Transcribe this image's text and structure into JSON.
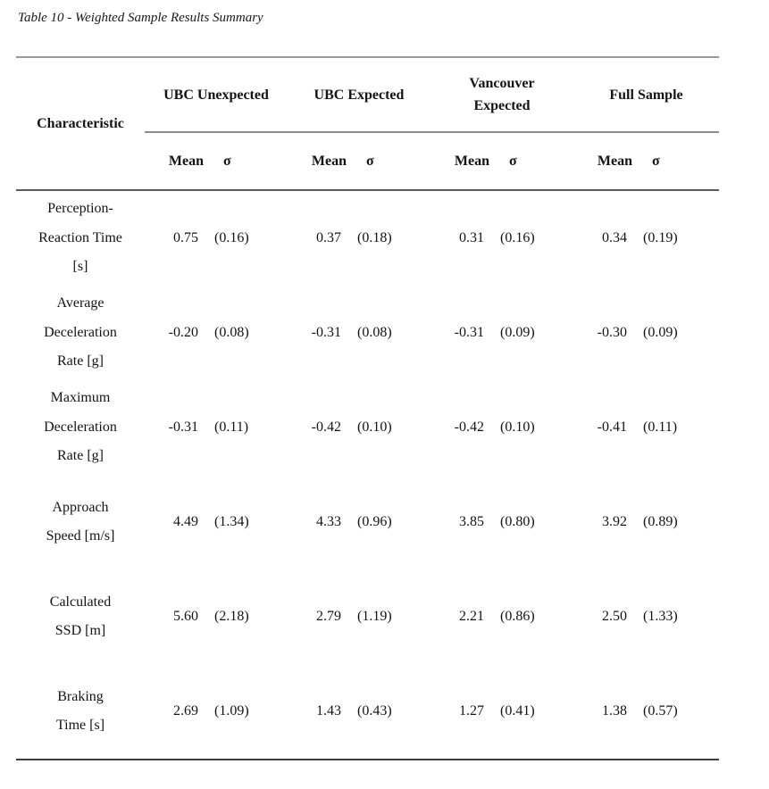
{
  "colors": {
    "background": "#ffffff",
    "text": "#141414",
    "rule_light": "#979797",
    "rule_dark": "#3d3d3d"
  },
  "title": "Table 10 - Weighted Sample Results Summary",
  "table": {
    "characteristic_header": "Characteristic",
    "sub_headers": {
      "mean": "Mean",
      "sigma": "σ"
    },
    "groups": [
      "UBC Unexpected",
      "UBC Expected",
      "Vancouver Expected",
      "Full Sample"
    ],
    "rows": [
      {
        "lines": [
          "Perception-",
          "Reaction Time",
          "[s]"
        ],
        "values": [
          [
            "0.75",
            "(0.16)"
          ],
          [
            "0.37",
            "(0.18)"
          ],
          [
            "0.31",
            "(0.16)"
          ],
          [
            "0.34",
            "(0.19)"
          ]
        ]
      },
      {
        "lines": [
          "Average",
          "Deceleration",
          "Rate [g]"
        ],
        "values": [
          [
            "-0.20",
            "(0.08)"
          ],
          [
            "-0.31",
            "(0.08)"
          ],
          [
            "-0.31",
            "(0.09)"
          ],
          [
            "-0.30",
            "(0.09)"
          ]
        ]
      },
      {
        "lines": [
          "Maximum",
          "Deceleration",
          "Rate [g]"
        ],
        "values": [
          [
            "-0.31",
            "(0.11)"
          ],
          [
            "-0.42",
            "(0.10)"
          ],
          [
            "-0.42",
            "(0.10)"
          ],
          [
            "-0.41",
            "(0.11)"
          ]
        ]
      },
      {
        "lines": [
          "Approach",
          "Speed [m/s]"
        ],
        "values": [
          [
            "4.49",
            "(1.34)"
          ],
          [
            "4.33",
            "(0.96)"
          ],
          [
            "3.85",
            "(0.80)"
          ],
          [
            "3.92",
            "(0.89)"
          ]
        ]
      },
      {
        "lines": [
          "Calculated",
          "SSD [m]"
        ],
        "values": [
          [
            "5.60",
            "(2.18)"
          ],
          [
            "2.79",
            "(1.19)"
          ],
          [
            "2.21",
            "(0.86)"
          ],
          [
            "2.50",
            "(1.33)"
          ]
        ]
      },
      {
        "lines": [
          "Braking",
          "Time [s]"
        ],
        "values": [
          [
            "2.69",
            "(1.09)"
          ],
          [
            "1.43",
            "(0.43)"
          ],
          [
            "1.27",
            "(0.41)"
          ],
          [
            "1.38",
            "(0.57)"
          ]
        ]
      }
    ]
  }
}
